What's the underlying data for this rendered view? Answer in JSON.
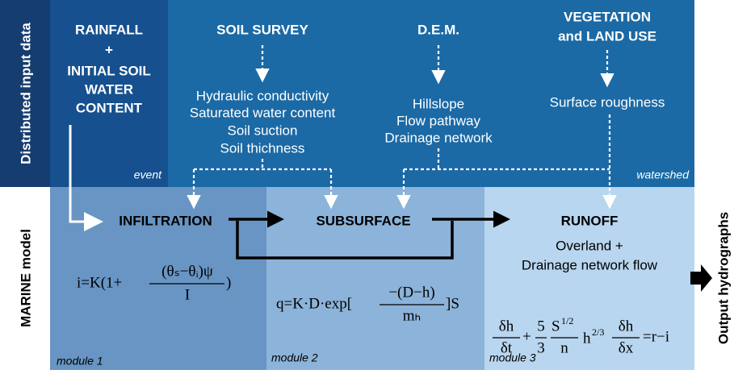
{
  "sidebar": {
    "input": "Distributed input data",
    "model": "MARINE model",
    "output": "Output hydrographs"
  },
  "rainfall": {
    "lines": [
      "RAINFALL",
      "+",
      "INITIAL SOIL",
      "WATER",
      "CONTENT"
    ],
    "tag": "event"
  },
  "sources": [
    {
      "title": [
        "SOIL SURVEY"
      ],
      "items": [
        "Hydraulic conductivity",
        "Saturated water content",
        "Soil suction",
        "Soil thichness"
      ]
    },
    {
      "title": [
        "D.E.M."
      ],
      "items": [
        "Hillslope",
        "Flow pathway",
        "Drainage network"
      ]
    },
    {
      "title": [
        "VEGETATION",
        "and LAND USE"
      ],
      "items": [
        "Surface roughness"
      ]
    }
  ],
  "watershed_tag": "watershed",
  "modules": [
    {
      "name": "INFILTRATION",
      "label": "module 1",
      "equation": {
        "left": "i=K(1+",
        "numerator": "(θₛ−θᵢ)ψ",
        "denominator": "I",
        "right": ")"
      }
    },
    {
      "name": "SUBSURFACE",
      "label": "module 2",
      "equation": {
        "left": "q=K·D·exp[",
        "numerator": "−(D−h)",
        "denominator": "mₕ",
        "right": "]S"
      }
    },
    {
      "name": "RUNOFF",
      "label": "module 3",
      "description": [
        "Overland +",
        "Drainage network flow"
      ],
      "equation": {
        "t1_num": "δh",
        "t1_den": "δt",
        "plus": "+",
        "c_num": "5",
        "c_den": "3",
        "s": "S",
        "s_exp": "1/2",
        "n": "n",
        "h": "h",
        "h_exp": "2/3",
        "t2_num": "δh",
        "t2_den": "δx",
        "rhs": "=r−i"
      }
    }
  ]
}
